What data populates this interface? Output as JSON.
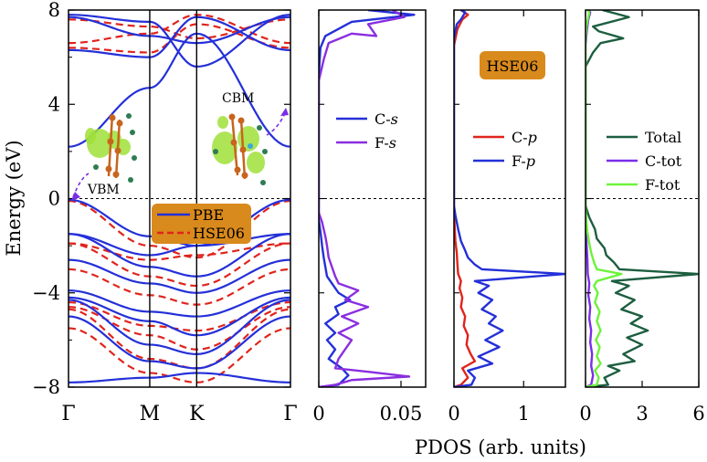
{
  "figure": {
    "shared_ylabel": "Energy (eV)",
    "shared_xlabel": "PDOS (arb. units)",
    "method_badge": "HSE06"
  },
  "colors": {
    "pbe": "#2430d8",
    "hse": "#e0241c",
    "c_s": "#2430d8",
    "f_s": "#8a2ee0",
    "c_p": "#e0241c",
    "f_p": "#2430d8",
    "total": "#1d5e40",
    "c_tot": "#7a2ee8",
    "f_tot": "#6ef23a",
    "badge": "#d98a1c",
    "orbital_lobe": "#9fe03a",
    "atom_c": "#c8641e",
    "atom_f": "#2e7d52"
  },
  "chart_data": [
    {
      "type": "line",
      "name": "band-structure",
      "ylabel": "Energy (eV)",
      "ylim": [
        -8,
        8
      ],
      "yticks": [
        "8",
        "4",
        "0",
        "−4",
        "−8"
      ],
      "ytick_values": [
        8,
        4,
        0,
        -4,
        -8
      ],
      "kpoints": [
        {
          "label": "Γ",
          "k": 0
        },
        {
          "label": "M",
          "k": 0.866
        },
        {
          "label": "K",
          "k": 1.366
        },
        {
          "label": "Γ",
          "k": 2.366
        }
      ],
      "fermi_level": 0,
      "annotations": {
        "vbm": "VBM",
        "cbm": "CBM"
      },
      "legend": [
        {
          "name": "PBE",
          "style": "solid",
          "color_key": "pbe"
        },
        {
          "name": "HSE06",
          "style": "dashed",
          "color_key": "hse"
        }
      ],
      "series": [
        {
          "name": "PBE",
          "bands": [
            [
              6.3,
              6.0,
              7.7,
              6.3
            ],
            [
              7.7,
              6.9,
              6.6,
              7.7
            ],
            [
              7.8,
              7.5,
              5.6,
              7.8
            ],
            [
              2.2,
              4.7,
              7.0,
              2.2
            ],
            [
              -0.05,
              -1.6,
              -2.0,
              -0.05
            ],
            [
              -1.5,
              -2.4,
              -2.0,
              -1.5
            ],
            [
              -1.5,
              -2.9,
              -3.3,
              -1.5
            ],
            [
              -2.6,
              -3.6,
              -4.0,
              -2.6
            ],
            [
              -3.9,
              -4.8,
              -5.0,
              -3.9
            ],
            [
              -4.2,
              -5.2,
              -5.8,
              -4.2
            ],
            [
              -4.3,
              -6.2,
              -6.6,
              -4.3
            ],
            [
              -5.0,
              -6.9,
              -7.2,
              -5.0
            ],
            [
              -7.8,
              -7.6,
              -7.4,
              -7.8
            ]
          ]
        },
        {
          "name": "HSE06",
          "bands": [
            [
              6.4,
              6.2,
              7.4,
              6.4
            ],
            [
              7.6,
              7.3,
              6.8,
              7.6
            ],
            [
              6.6,
              7.0,
              7.8,
              6.6
            ],
            [
              -0.1,
              -2.0,
              -2.5,
              -0.1
            ],
            [
              -1.9,
              -2.6,
              -2.4,
              -1.9
            ],
            [
              -1.9,
              -3.3,
              -3.7,
              -1.9
            ],
            [
              -3.0,
              -4.1,
              -4.5,
              -3.0
            ],
            [
              -4.4,
              -5.4,
              -5.6,
              -4.4
            ],
            [
              -4.6,
              -5.8,
              -6.4,
              -4.6
            ],
            [
              -4.7,
              -6.8,
              -7.2,
              -4.7
            ],
            [
              -5.5,
              -7.4,
              -7.8,
              -5.5
            ]
          ]
        }
      ]
    },
    {
      "type": "line",
      "name": "pdos-s",
      "xlim": [
        0,
        0.065
      ],
      "xticks": [
        "0",
        "0.05"
      ],
      "xtick_values": [
        0,
        0.05
      ],
      "ylim": [
        -8,
        8
      ],
      "legend": [
        {
          "name": "C-",
          "orb": "s",
          "color_key": "c_s"
        },
        {
          "name": "F-",
          "orb": "s",
          "color_key": "f_s"
        }
      ],
      "series": [
        {
          "name": "C-s",
          "points": [
            [
              0,
              -8
            ],
            [
              0.012,
              -7.9
            ],
            [
              0.018,
              -7.5
            ],
            [
              0.014,
              -7.2
            ],
            [
              0.006,
              -6.8
            ],
            [
              0.01,
              -6.4
            ],
            [
              0.005,
              -6.0
            ],
            [
              0.01,
              -5.7
            ],
            [
              0.004,
              -5.3
            ],
            [
              0.012,
              -4.9
            ],
            [
              0.01,
              -4.6
            ],
            [
              0.019,
              -4.3
            ],
            [
              0.012,
              -4.0
            ],
            [
              0.008,
              -3.6
            ],
            [
              0.005,
              -3.3
            ],
            [
              0.004,
              -2.9
            ],
            [
              0.003,
              -2.5
            ],
            [
              0.002,
              -2.0
            ],
            [
              0.001,
              -1.4
            ],
            [
              0.0,
              -0.9
            ],
            [
              0,
              0
            ],
            [
              0,
              5.2
            ],
            [
              0.001,
              6.4
            ],
            [
              0.004,
              6.9
            ],
            [
              0.012,
              7.2
            ],
            [
              0.02,
              7.5
            ],
            [
              0.058,
              7.8
            ],
            [
              0.03,
              8
            ]
          ]
        },
        {
          "name": "F-s",
          "points": [
            [
              0,
              -8
            ],
            [
              0.01,
              -7.9
            ],
            [
              0.02,
              -7.7
            ],
            [
              0.055,
              -7.55
            ],
            [
              0.03,
              -7.35
            ],
            [
              0.01,
              -7.2
            ],
            [
              0.012,
              -6.8
            ],
            [
              0.016,
              -6.4
            ],
            [
              0.02,
              -6.0
            ],
            [
              0.012,
              -5.7
            ],
            [
              0.024,
              -5.3
            ],
            [
              0.014,
              -5.0
            ],
            [
              0.03,
              -4.6
            ],
            [
              0.016,
              -4.3
            ],
            [
              0.024,
              -3.9
            ],
            [
              0.012,
              -3.6
            ],
            [
              0.01,
              -3.3
            ],
            [
              0.008,
              -2.9
            ],
            [
              0.006,
              -2.5
            ],
            [
              0.005,
              -2.0
            ],
            [
              0.004,
              -1.6
            ],
            [
              0.002,
              -1.0
            ],
            [
              0,
              -0.6
            ],
            [
              0,
              0
            ],
            [
              0,
              5.0
            ],
            [
              0.003,
              5.9
            ],
            [
              0.006,
              6.6
            ],
            [
              0.02,
              7.0
            ],
            [
              0.035,
              6.9
            ],
            [
              0.03,
              7.4
            ],
            [
              0.052,
              7.7
            ],
            [
              0.045,
              8
            ]
          ]
        }
      ]
    },
    {
      "type": "line",
      "name": "pdos-p",
      "xlim": [
        0,
        1.6
      ],
      "xticks": [
        "0",
        "1"
      ],
      "xtick_values": [
        0,
        1
      ],
      "ylim": [
        -8,
        8
      ],
      "legend": [
        {
          "name": "C-",
          "orb": "p",
          "color_key": "c_p"
        },
        {
          "name": "F-",
          "orb": "p",
          "color_key": "f_p"
        }
      ],
      "series": [
        {
          "name": "C-p",
          "points": [
            [
              0,
              -8
            ],
            [
              0.1,
              -7.9
            ],
            [
              0.2,
              -7.6
            ],
            [
              0.12,
              -7.2
            ],
            [
              0.3,
              -6.9
            ],
            [
              0.24,
              -6.6
            ],
            [
              0.18,
              -6.2
            ],
            [
              0.2,
              -5.8
            ],
            [
              0.14,
              -5.4
            ],
            [
              0.16,
              -5.0
            ],
            [
              0.1,
              -4.6
            ],
            [
              0.12,
              -4.2
            ],
            [
              0.08,
              -3.8
            ],
            [
              0.1,
              -3.5
            ],
            [
              0.06,
              -3.2
            ],
            [
              0.05,
              -2.8
            ],
            [
              0.04,
              -2.3
            ],
            [
              0.02,
              -1.8
            ],
            [
              0.01,
              -1.2
            ],
            [
              0,
              -0.5
            ],
            [
              0,
              0
            ],
            [
              0,
              6.5
            ],
            [
              0.05,
              7.2
            ],
            [
              0.12,
              7.6
            ],
            [
              0.2,
              7.8
            ],
            [
              0.1,
              8
            ]
          ]
        },
        {
          "name": "F-p",
          "points": [
            [
              0,
              -8
            ],
            [
              0.25,
              -7.9
            ],
            [
              0.3,
              -7.6
            ],
            [
              0.2,
              -7.3
            ],
            [
              0.55,
              -7.0
            ],
            [
              0.35,
              -6.7
            ],
            [
              0.65,
              -6.3
            ],
            [
              0.45,
              -6.0
            ],
            [
              0.7,
              -5.6
            ],
            [
              0.5,
              -5.3
            ],
            [
              0.6,
              -5.0
            ],
            [
              0.4,
              -4.7
            ],
            [
              0.55,
              -4.3
            ],
            [
              0.35,
              -4.0
            ],
            [
              0.5,
              -3.7
            ],
            [
              0.3,
              -3.5
            ],
            [
              1.6,
              -3.2
            ],
            [
              0.4,
              -3.0
            ],
            [
              0.3,
              -2.8
            ],
            [
              0.2,
              -2.5
            ],
            [
              0.16,
              -2.2
            ],
            [
              0.1,
              -1.8
            ],
            [
              0.06,
              -1.3
            ],
            [
              0.02,
              -0.7
            ],
            [
              0,
              -0.3
            ],
            [
              0,
              0
            ],
            [
              0,
              6.8
            ],
            [
              0.04,
              7.4
            ],
            [
              0.1,
              7.6
            ],
            [
              0.16,
              7.9
            ],
            [
              0.1,
              8
            ]
          ]
        }
      ]
    },
    {
      "type": "line",
      "name": "pdos-total",
      "xlim": [
        0,
        6
      ],
      "xticks": [
        "0",
        "3",
        "6"
      ],
      "xtick_values": [
        0,
        3,
        6
      ],
      "ylim": [
        -8,
        8
      ],
      "legend": [
        {
          "name": "Total",
          "orb": "",
          "color_key": "total"
        },
        {
          "name": "C-tot",
          "orb": "",
          "color_key": "c_tot"
        },
        {
          "name": "F-tot",
          "orb": "",
          "color_key": "f_tot"
        }
      ],
      "series": [
        {
          "name": "Total",
          "points": [
            [
              0,
              -8
            ],
            [
              1.2,
              -7.9
            ],
            [
              1.0,
              -7.6
            ],
            [
              1.8,
              -7.3
            ],
            [
              1.2,
              -7.1
            ],
            [
              2.6,
              -6.9
            ],
            [
              2.0,
              -6.6
            ],
            [
              3.0,
              -6.2
            ],
            [
              2.2,
              -5.9
            ],
            [
              3.3,
              -5.6
            ],
            [
              2.4,
              -5.3
            ],
            [
              3.0,
              -5.0
            ],
            [
              1.9,
              -4.7
            ],
            [
              2.6,
              -4.3
            ],
            [
              1.6,
              -4.0
            ],
            [
              2.3,
              -3.7
            ],
            [
              1.4,
              -3.5
            ],
            [
              6.0,
              -3.2
            ],
            [
              1.8,
              -3.0
            ],
            [
              1.5,
              -2.7
            ],
            [
              1.1,
              -2.4
            ],
            [
              1.0,
              -2.1
            ],
            [
              0.6,
              -1.7
            ],
            [
              0.5,
              -1.3
            ],
            [
              0.2,
              -0.8
            ],
            [
              0,
              -0.3
            ],
            [
              0,
              0
            ],
            [
              0,
              5.6
            ],
            [
              0.4,
              6.2
            ],
            [
              0.8,
              6.6
            ],
            [
              2.0,
              6.8
            ],
            [
              0.7,
              7.1
            ],
            [
              0.4,
              7.3
            ],
            [
              2.3,
              7.7
            ],
            [
              0.9,
              8
            ]
          ]
        },
        {
          "name": "C-tot",
          "points": [
            [
              0,
              -8
            ],
            [
              0.3,
              -7.9
            ],
            [
              0.4,
              -7.5
            ],
            [
              0.3,
              -7.1
            ],
            [
              0.35,
              -6.6
            ],
            [
              0.25,
              -6.1
            ],
            [
              0.3,
              -5.6
            ],
            [
              0.2,
              -5.1
            ],
            [
              0.25,
              -4.6
            ],
            [
              0.15,
              -4.1
            ],
            [
              0.2,
              -3.6
            ],
            [
              0.12,
              -3.2
            ],
            [
              0.1,
              -2.6
            ],
            [
              0.06,
              -2.0
            ],
            [
              0.02,
              -1.3
            ],
            [
              0,
              -0.6
            ],
            [
              0,
              0
            ],
            [
              0,
              6.5
            ],
            [
              0.08,
              7.2
            ],
            [
              0.15,
              7.6
            ],
            [
              0.25,
              7.9
            ],
            [
              0.15,
              8
            ]
          ]
        },
        {
          "name": "F-tot",
          "points": [
            [
              0,
              -8
            ],
            [
              0.6,
              -7.9
            ],
            [
              0.7,
              -7.6
            ],
            [
              0.5,
              -7.3
            ],
            [
              0.8,
              -7.0
            ],
            [
              0.6,
              -6.7
            ],
            [
              0.75,
              -6.3
            ],
            [
              0.55,
              -6.0
            ],
            [
              0.8,
              -5.6
            ],
            [
              0.6,
              -5.2
            ],
            [
              0.75,
              -4.8
            ],
            [
              0.5,
              -4.4
            ],
            [
              0.65,
              -4.0
            ],
            [
              0.45,
              -3.7
            ],
            [
              0.6,
              -3.5
            ],
            [
              1.9,
              -3.2
            ],
            [
              0.6,
              -3.0
            ],
            [
              0.45,
              -2.7
            ],
            [
              0.3,
              -2.3
            ],
            [
              0.2,
              -1.9
            ],
            [
              0.1,
              -1.4
            ],
            [
              0.04,
              -0.9
            ],
            [
              0,
              -0.4
            ],
            [
              0,
              0
            ],
            [
              0,
              6.7
            ],
            [
              0.05,
              7.3
            ],
            [
              0.12,
              7.6
            ],
            [
              0.2,
              7.9
            ],
            [
              0.1,
              8
            ]
          ]
        }
      ]
    }
  ]
}
